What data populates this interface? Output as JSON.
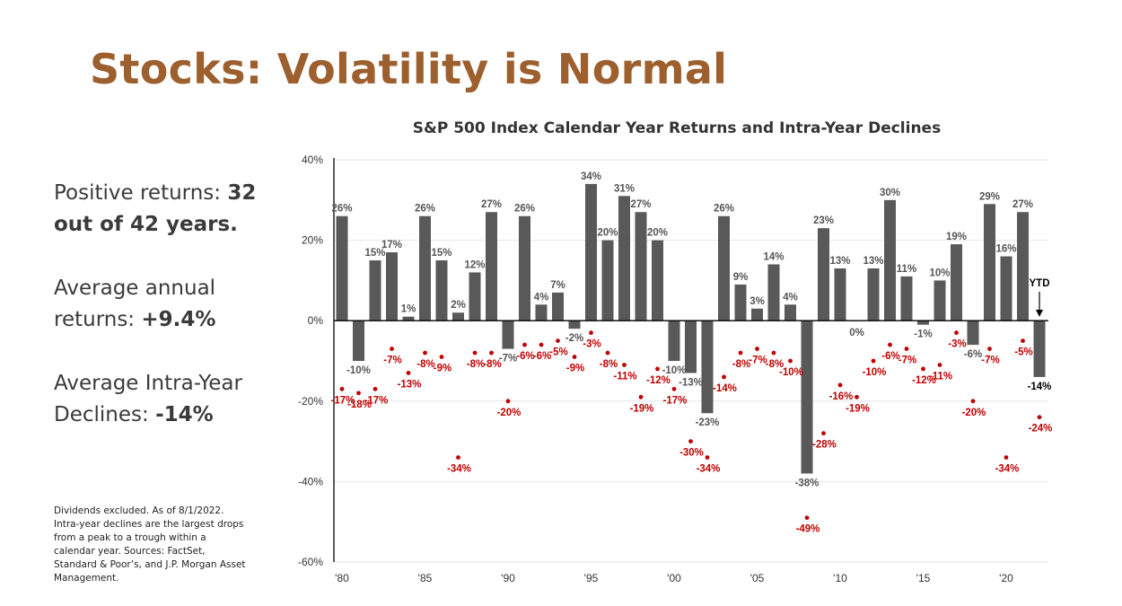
{
  "slide": {
    "title": "Stocks: Volatility is Normal"
  },
  "stats": {
    "positive_label": "Positive returns: ",
    "positive_value": "32 out of 42 years.",
    "average_label": "Average annual returns: ",
    "average_value": "+9.4%",
    "declines_label": "Average Intra-Year Declines: ",
    "declines_value": "-14%"
  },
  "footnote": "Dividends excluded. As of 8/1/2022. Intra-year declines are the largest drops from a peak to a trough within a calendar year. Sources: FactSet, Standard & Poor’s, and J.P. Morgan Asset Management.",
  "colors": {
    "title": "#9c5f2d",
    "bar": "#595959",
    "decline": "#c00000",
    "text": "#3a3a3a"
  },
  "chart_data": {
    "type": "bar",
    "title": "S&P 500 Index Calendar Year Returns and Intra-Year Declines",
    "ylim": [
      -60,
      40
    ],
    "yticks": [
      "40%",
      "20%",
      "0%",
      "-20%",
      "-40%",
      "-60%"
    ],
    "ytick_values": [
      40,
      20,
      0,
      -20,
      -40,
      -60
    ],
    "xtick_labels": [
      {
        "year": 1980,
        "label": "'80"
      },
      {
        "year": 1985,
        "label": "'85"
      },
      {
        "year": 1990,
        "label": "'90"
      },
      {
        "year": 1995,
        "label": "'95"
      },
      {
        "year": 2000,
        "label": "'00"
      },
      {
        "year": 2005,
        "label": "'05"
      },
      {
        "year": 2010,
        "label": "'10"
      },
      {
        "year": 2015,
        "label": "'15"
      },
      {
        "year": 2020,
        "label": "'20"
      }
    ],
    "grid": "horizontal",
    "ytd_label": "YTD",
    "years": [
      1980,
      1981,
      1982,
      1983,
      1984,
      1985,
      1986,
      1987,
      1988,
      1989,
      1990,
      1991,
      1992,
      1993,
      1994,
      1995,
      1996,
      1997,
      1998,
      1999,
      2000,
      2001,
      2002,
      2003,
      2004,
      2005,
      2006,
      2007,
      2008,
      2009,
      2010,
      2011,
      2012,
      2013,
      2014,
      2015,
      2016,
      2017,
      2018,
      2019,
      2020,
      2021,
      2022
    ],
    "series": [
      {
        "values": [
          26,
          -10,
          15,
          17,
          1,
          26,
          15,
          2,
          12,
          27,
          -7,
          26,
          4,
          7,
          -2,
          34,
          20,
          31,
          27,
          20,
          -10,
          -13,
          -23,
          26,
          9,
          3,
          14,
          4,
          -38,
          23,
          13,
          0,
          13,
          30,
          11,
          -1,
          10,
          19,
          -6,
          29,
          16,
          27,
          -14
        ],
        "labels": [
          "26%",
          "-10%",
          "15%",
          "17%",
          "1%",
          "26%",
          "15%",
          "2%",
          "12%",
          "27%",
          "-7%",
          "26%",
          "4%",
          "7%",
          "-2%",
          "34%",
          "20%",
          "31%",
          "27%",
          "20%",
          "-10%",
          "-13%",
          "-23%",
          "26%",
          "9%",
          "3%",
          "14%",
          "4%",
          "-38%",
          "23%",
          "13%",
          "0%",
          "13%",
          "30%",
          "11%",
          "-1%",
          "10%",
          "19%",
          "-6%",
          "29%",
          "16%",
          "27%",
          "-14%"
        ]
      },
      {
        "values": [
          -17,
          -18,
          -17,
          -7,
          -13,
          -8,
          -9,
          -34,
          -8,
          -8,
          -20,
          -6,
          -6,
          -5,
          -9,
          -3,
          -8,
          -11,
          -19,
          -12,
          -17,
          -30,
          -34,
          -14,
          -8,
          -7,
          -8,
          -10,
          -49,
          -28,
          -16,
          -19,
          -10,
          -6,
          -7,
          -12,
          -11,
          -3,
          -20,
          -7,
          -34,
          -5,
          -24
        ],
        "labels": [
          "-17%",
          "-18%",
          "-17%",
          "-7%",
          "-13%",
          "-8%",
          "-9%",
          "-34%",
          "-8%",
          "-8%",
          "-20%",
          "-6%",
          "-6%",
          "-5%",
          "-9%",
          "-3%",
          "-8%",
          "-11%",
          "-19%",
          "-12%",
          "-17%",
          "-30%",
          "-34%",
          "-14%",
          "-8%",
          "-7%",
          "-8%",
          "-10%",
          "-49%",
          "-28%",
          "-16%",
          "-19%",
          "-10%",
          "-6%",
          "-7%",
          "-12%",
          "-11%",
          "-3%",
          "-20%",
          "-7%",
          "-34%",
          "-5%",
          "-24%"
        ]
      }
    ]
  }
}
